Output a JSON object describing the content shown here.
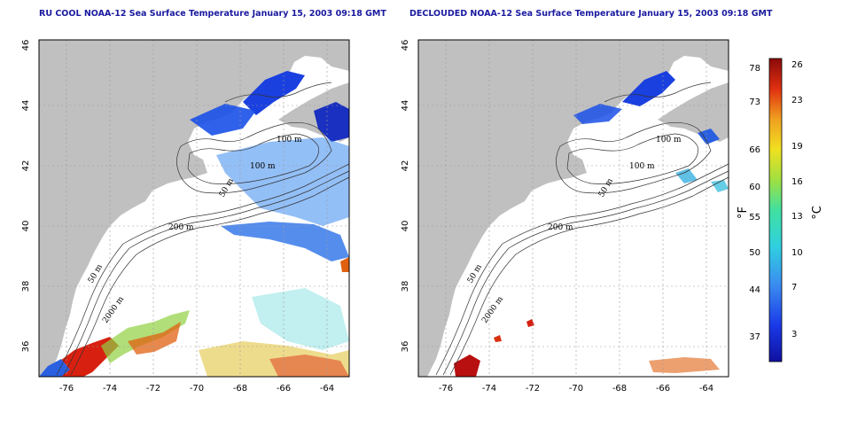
{
  "titles": {
    "left": "RU COOL NOAA-12 Sea Surface Temperature January 15, 2003 09:18 GMT",
    "right": "DECLOUDED NOAA-12 Sea Surface Temperature January 15, 2003 09:18 GMT"
  },
  "map": {
    "lon_ticks": [
      "-76",
      "-74",
      "-72",
      "-70",
      "-68",
      "-66",
      "-64"
    ],
    "lat_ticks": [
      "36",
      "38",
      "40",
      "42",
      "44",
      "46"
    ],
    "contour_labels": [
      "100 m",
      "100 m",
      "50 m",
      "200 m",
      "50 m",
      "2000 m"
    ]
  },
  "colorbar": {
    "fahrenheit_ticks": [
      "78",
      "73",
      "66",
      "60",
      "55",
      "50",
      "44",
      "37"
    ],
    "celsius_ticks": [
      "26",
      "23",
      "19",
      "16",
      "13",
      "10",
      "7",
      "3"
    ],
    "fahrenheit_unit": "°F",
    "celsius_unit": "°C"
  },
  "colors": {
    "land": "#c0c0c0",
    "title": "#1a1aa0",
    "grid": "#9a9a9a"
  }
}
